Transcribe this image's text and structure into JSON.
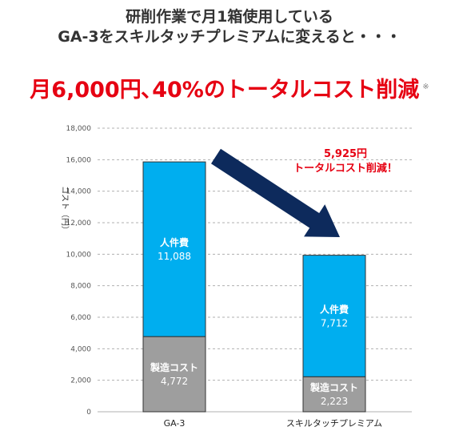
{
  "header": {
    "line1": "研削作業で月1箱使用している",
    "line2": "GA-3をスキルタッチプレミアムに変えると・・・",
    "banner": "月6,000円､40%のトータルコスト削減",
    "banner_note": "※"
  },
  "chart_data": {
    "type": "bar",
    "stacked": true,
    "categories": [
      "GA-3",
      "スキルタッチプレミアム"
    ],
    "series": [
      {
        "name": "製造コスト",
        "values": [
          4772,
          2223
        ],
        "color": "#9e9e9e"
      },
      {
        "name": "人件費",
        "values": [
          11088,
          7712
        ],
        "color": "#00aeef"
      }
    ],
    "ylabel": "コスト（円）",
    "ylim": [
      0,
      18000
    ],
    "yticks": [
      "0",
      "2,000",
      "4,000",
      "6,000",
      "8,000",
      "10,000",
      "12,000",
      "14,000",
      "16,000",
      "18,000"
    ],
    "grid": true,
    "annotation": {
      "line1": "5,925円",
      "line2": "トータルコスト削減！"
    },
    "colors": {
      "arrow": "#0d2a5c",
      "annotation": "#e60012",
      "grid": "#b0b0b0"
    }
  }
}
